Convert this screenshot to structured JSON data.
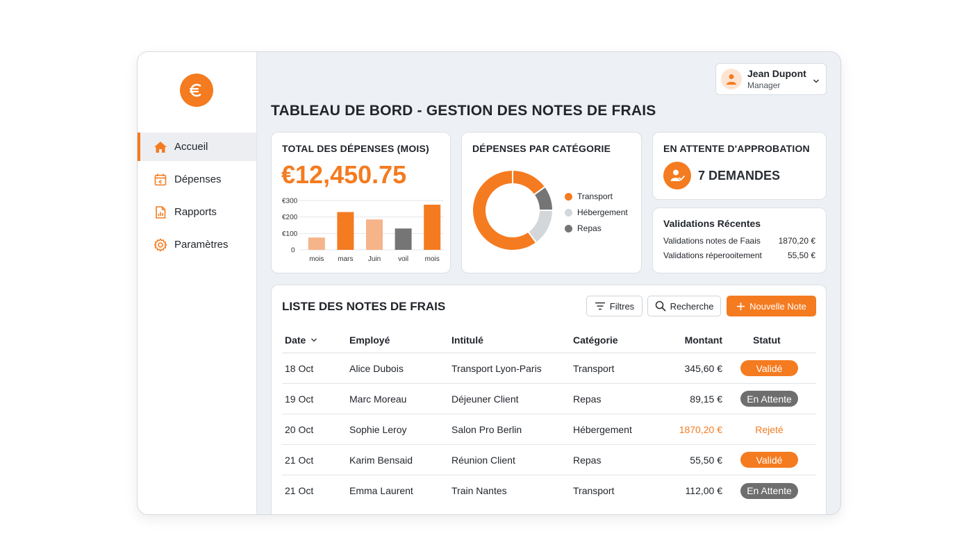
{
  "colors": {
    "accent": "#f47b20",
    "light_orange": "#f5b48a",
    "gray": "#757575",
    "light_gray": "#d4d7da"
  },
  "sidebar": {
    "logo_icon": "euro-icon",
    "items": [
      {
        "label": "Accueil",
        "icon": "home-icon",
        "active": true
      },
      {
        "label": "Dépenses",
        "icon": "calendar-euro-icon"
      },
      {
        "label": "Rapports",
        "icon": "report-icon"
      },
      {
        "label": "Paramètres",
        "icon": "gear-icon"
      }
    ]
  },
  "user": {
    "name": "Jean Dupont",
    "role": "Manager"
  },
  "page_title": "TABLEAU DE BORD - GESTION DES NOTES DE FRAIS",
  "total_card": {
    "title": "TOTAL DES DÉPENSES (MOIS)",
    "value": "€12,450.75",
    "chart_data": {
      "type": "bar",
      "categories": [
        "mois",
        "mars",
        "Juin",
        "voil",
        "mois"
      ],
      "values": [
        75,
        230,
        185,
        130,
        275
      ],
      "colors": [
        "#f5b48a",
        "#f47b20",
        "#f5b48a",
        "#757575",
        "#f47b20"
      ],
      "yticks": [
        "€300",
        "€200",
        "€100",
        "0"
      ],
      "ylim": [
        0,
        300
      ]
    }
  },
  "category_card": {
    "title": "DÉPENSES PAR CATÉGORIE",
    "chart_data": {
      "type": "pie",
      "labels": [
        "Transport",
        "Hébergement",
        "Repas"
      ],
      "legend_colors": [
        "#f47b20",
        "#d4d7da",
        "#757575"
      ],
      "segments": [
        {
          "value": 15,
          "color": "#f47b20"
        },
        {
          "value": 10,
          "color": "#757575"
        },
        {
          "value": 15,
          "color": "#d4d7da"
        },
        {
          "value": 60,
          "color": "#f47b20"
        }
      ]
    }
  },
  "pending_card": {
    "title": "EN ATTENTE D'APPROBATION",
    "count": "7 DEMANDES"
  },
  "recent_card": {
    "title": "Validations Récentes",
    "rows": [
      {
        "label": "Validations notes de Faais",
        "amount": "1870,20 €"
      },
      {
        "label": "Validations réperooitement",
        "amount": "55,50 €"
      }
    ]
  },
  "list": {
    "title": "LISTE DES NOTES DE FRAIS",
    "filter_label": "Filtres",
    "search_label": "Recherche",
    "new_label": "Nouvelle Note",
    "headers": {
      "date": "Date",
      "employee": "Employé",
      "title": "Intitulé",
      "category": "Catégorie",
      "amount": "Montant",
      "status": "Statut"
    },
    "rows": [
      {
        "date": "18 Oct",
        "employee": "Alice Dubois",
        "title": "Transport Lyon-Paris",
        "category": "Transport",
        "amount": "345,60 €",
        "status": "Validé",
        "kind": "ok"
      },
      {
        "date": "19 Oct",
        "employee": "Marc Moreau",
        "title": "Déjeuner Client",
        "category": "Repas",
        "amount": "89,15 €",
        "status": "En Attente",
        "kind": "wait"
      },
      {
        "date": "20 Oct",
        "employee": "Sophie Leroy",
        "title": "Salon Pro Berlin",
        "category": "Hébergement",
        "amount": "1870,20 €",
        "status": "Rejeté",
        "kind": "rej"
      },
      {
        "date": "21 Oct",
        "employee": "Karim Bensaid",
        "title": "Réunion Client",
        "category": "Repas",
        "amount": "55,50 €",
        "status": "Validé",
        "kind": "ok"
      },
      {
        "date": "21 Oct",
        "employee": "Emma Laurent",
        "title": "Train Nantes",
        "category": "Transport",
        "amount": "112,00 €",
        "status": "En Attente",
        "kind": "wait"
      }
    ]
  }
}
